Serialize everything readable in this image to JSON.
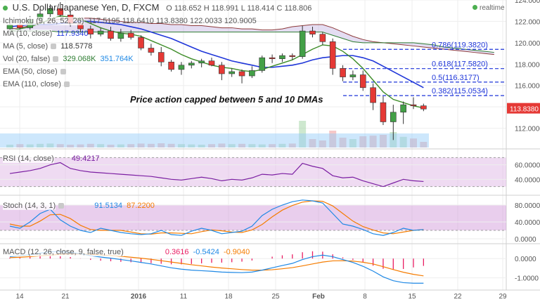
{
  "header": {
    "symbol": "U.S. Dollar/Japanese Yen, D, FXCM",
    "ohlc": "O 118.652  H 118.991  L 118.414  C 118.806",
    "realtime": "realtime"
  },
  "annotation": "Price action capped between 5 and 10 DMAs",
  "indicators": {
    "ichimoku": {
      "name": "Ichimoku (9, 26, 52, 26)",
      "values": "117.5195  118.6410  113.8380  122.0033  120.9005"
    },
    "ma10": {
      "name": "MA (10, close)",
      "value": "117.9340"
    },
    "ma5": {
      "name": "MA (5, close)",
      "value": "118.5778"
    },
    "vol": {
      "name": "Vol (20, false)",
      "value": "329.068K",
      "value2": "351.764K"
    },
    "ema50": {
      "name": "EMA (50, close)"
    },
    "ema110": {
      "name": "EMA (110, close)"
    },
    "rsi": {
      "name": "RSI (14, close)",
      "value": "49.4217"
    },
    "stoch": {
      "name": "Stoch (14, 3, 1)",
      "k": "91.5134",
      "d": "87.2200"
    },
    "macd": {
      "name": "MACD (12, 26, close, 9, false, true)",
      "hist": "0.3616",
      "macd": "-0.5424",
      "signal": "-0.9040"
    }
  },
  "colors": {
    "up": "#43a047",
    "down": "#e53935",
    "ma5": "#3d8c27",
    "ma10": "#1f36d9",
    "cloud": "#b39ddb",
    "fib": "#1f36d9",
    "rsi": "#7b1fa2",
    "stoch_k": "#1e88e5",
    "stoch_d": "#f57c00",
    "macd": "#1e88e5",
    "signal": "#f57c00",
    "hist": "#e91e63"
  },
  "chart_data": {
    "type": "candlestick",
    "price_axis": {
      "min": 110.2,
      "max": 124.0,
      "ticks": [
        "124.0000",
        "122.0000",
        "120.0000",
        "118.0000",
        "116.0000",
        "114.0000",
        "112.0000"
      ],
      "last_label": "113.8380"
    },
    "time_labels": [
      "14",
      "21",
      "2016",
      "11",
      "18",
      "25",
      "Feb",
      "8",
      "15",
      "22",
      "29"
    ],
    "candles": [
      {
        "o": 121.3,
        "h": 122.0,
        "l": 120.9,
        "c": 121.7
      },
      {
        "o": 121.7,
        "h": 122.3,
        "l": 121.1,
        "c": 121.4
      },
      {
        "o": 121.4,
        "h": 122.5,
        "l": 121.0,
        "c": 122.2
      },
      {
        "o": 122.2,
        "h": 123.4,
        "l": 121.8,
        "c": 122.7
      },
      {
        "o": 122.7,
        "h": 123.6,
        "l": 122.4,
        "c": 123.2
      },
      {
        "o": 123.2,
        "h": 123.8,
        "l": 122.4,
        "c": 122.6
      },
      {
        "o": 122.6,
        "h": 123.0,
        "l": 121.5,
        "c": 121.8
      },
      {
        "o": 121.8,
        "h": 122.3,
        "l": 121.0,
        "c": 121.3
      },
      {
        "o": 121.3,
        "h": 121.6,
        "l": 120.4,
        "c": 120.8
      },
      {
        "o": 120.8,
        "h": 121.4,
        "l": 120.6,
        "c": 121.1
      },
      {
        "o": 121.1,
        "h": 121.5,
        "l": 120.2,
        "c": 120.4
      },
      {
        "o": 120.4,
        "h": 121.3,
        "l": 120.1,
        "c": 120.9
      },
      {
        "o": 120.9,
        "h": 121.2,
        "l": 120.3,
        "c": 120.5
      },
      {
        "o": 120.5,
        "h": 120.7,
        "l": 119.3,
        "c": 119.5
      },
      {
        "o": 119.5,
        "h": 119.9,
        "l": 118.8,
        "c": 119.1
      },
      {
        "o": 119.1,
        "h": 119.6,
        "l": 117.8,
        "c": 118.2
      },
      {
        "o": 118.2,
        "h": 118.4,
        "l": 117.3,
        "c": 117.5
      },
      {
        "o": 117.5,
        "h": 118.2,
        "l": 117.0,
        "c": 117.9
      },
      {
        "o": 117.9,
        "h": 118.3,
        "l": 117.6,
        "c": 118.1
      },
      {
        "o": 118.1,
        "h": 118.5,
        "l": 117.7,
        "c": 118.3
      },
      {
        "o": 118.3,
        "h": 118.6,
        "l": 117.8,
        "c": 117.9
      },
      {
        "o": 117.9,
        "h": 118.2,
        "l": 116.5,
        "c": 117.1
      },
      {
        "o": 117.1,
        "h": 117.6,
        "l": 116.8,
        "c": 117.3
      },
      {
        "o": 117.3,
        "h": 117.5,
        "l": 116.2,
        "c": 116.9
      },
      {
        "o": 116.9,
        "h": 117.8,
        "l": 116.7,
        "c": 117.4
      },
      {
        "o": 117.4,
        "h": 118.8,
        "l": 117.2,
        "c": 118.6
      },
      {
        "o": 118.6,
        "h": 118.9,
        "l": 118.1,
        "c": 118.5
      },
      {
        "o": 118.5,
        "h": 119.0,
        "l": 118.2,
        "c": 118.8
      },
      {
        "o": 118.8,
        "h": 119.0,
        "l": 118.4,
        "c": 118.7
      },
      {
        "o": 118.7,
        "h": 121.6,
        "l": 118.5,
        "c": 121.1
      },
      {
        "o": 121.1,
        "h": 121.5,
        "l": 120.5,
        "c": 120.8
      },
      {
        "o": 120.8,
        "h": 121.0,
        "l": 119.8,
        "c": 120.1
      },
      {
        "o": 120.1,
        "h": 120.4,
        "l": 117.0,
        "c": 117.6
      },
      {
        "o": 117.6,
        "h": 117.9,
        "l": 116.4,
        "c": 116.8
      },
      {
        "o": 116.8,
        "h": 117.4,
        "l": 116.5,
        "c": 117.0
      },
      {
        "o": 117.0,
        "h": 117.4,
        "l": 115.5,
        "c": 115.8
      },
      {
        "o": 115.8,
        "h": 116.2,
        "l": 113.7,
        "c": 114.4
      },
      {
        "o": 114.4,
        "h": 115.0,
        "l": 112.3,
        "c": 112.6
      },
      {
        "o": 112.6,
        "h": 114.2,
        "l": 110.9,
        "c": 113.5
      },
      {
        "o": 113.5,
        "h": 114.5,
        "l": 112.4,
        "c": 114.2
      },
      {
        "o": 114.2,
        "h": 114.9,
        "l": 113.8,
        "c": 114.1
      },
      {
        "o": 114.1,
        "h": 114.3,
        "l": 113.6,
        "c": 113.8
      }
    ],
    "ma5": [
      121.1,
      121.3,
      121.5,
      121.8,
      122.2,
      122.5,
      122.4,
      122.2,
      121.8,
      121.4,
      121.1,
      120.9,
      120.8,
      120.6,
      120.2,
      119.8,
      119.4,
      118.9,
      118.5,
      118.2,
      117.9,
      117.7,
      117.6,
      117.4,
      117.3,
      117.5,
      117.8,
      118.1,
      118.4,
      118.9,
      119.4,
      119.8,
      119.7,
      119.2,
      118.5,
      117.6,
      116.5,
      115.4,
      114.7,
      114.4,
      114.1,
      113.9
    ],
    "ma10": [
      121.5,
      121.6,
      121.7,
      121.7,
      121.7,
      121.8,
      121.9,
      122.0,
      122.0,
      121.9,
      121.8,
      121.7,
      121.5,
      121.3,
      121.0,
      120.7,
      120.4,
      120.0,
      119.6,
      119.2,
      118.9,
      118.6,
      118.3,
      118.1,
      117.9,
      117.7,
      117.7,
      117.8,
      117.9,
      118.1,
      118.4,
      118.6,
      118.7,
      118.8,
      118.8,
      118.6,
      118.3,
      117.8,
      117.3,
      116.8,
      116.3,
      115.8
    ],
    "cloud_upper": [
      121.3,
      121.4,
      121.6,
      121.9,
      122.1,
      122.2,
      122.3,
      122.3,
      122.3,
      122.2,
      122.1,
      122.0,
      121.9,
      121.9,
      121.8,
      121.8,
      121.7,
      121.7,
      121.6,
      121.6,
      121.5,
      121.4,
      121.4,
      121.3,
      121.3,
      121.2,
      121.2,
      121.3,
      121.5,
      121.6,
      121.7,
      121.7,
      121.4,
      121.0,
      120.6,
      120.3,
      120.1,
      120.0,
      119.9,
      119.8,
      119.7,
      119.6,
      119.5,
      119.4,
      119.3,
      119.2,
      119.1,
      119.0,
      118.9
    ],
    "cloud_lower": [
      121.0,
      121.1,
      121.1,
      121.1,
      121.1,
      121.0,
      121.0,
      121.0,
      121.0,
      121.0,
      121.0,
      121.0,
      121.0,
      121.0,
      121.0,
      121.0,
      121.0,
      121.0,
      121.0,
      121.0,
      121.0,
      121.0,
      121.0,
      121.0,
      121.0,
      121.0,
      121.0,
      121.0,
      121.0,
      121.0,
      121.0,
      121.0,
      120.7,
      120.4,
      120.1,
      120.0,
      120.0,
      120.0,
      120.0,
      120.0,
      120.0,
      119.9,
      119.8,
      119.6,
      119.5,
      119.4,
      119.3,
      119.2,
      119.1
    ],
    "volume": [
      0.1,
      0.12,
      0.11,
      0.13,
      0.14,
      0.12,
      0.1,
      0.11,
      0.13,
      0.12,
      0.1,
      0.11,
      0.12,
      0.14,
      0.13,
      0.15,
      0.13,
      0.12,
      0.11,
      0.1,
      0.12,
      0.14,
      0.12,
      0.13,
      0.12,
      0.11,
      0.12,
      0.13,
      0.14,
      0.95,
      0.3,
      0.25,
      0.6,
      0.35,
      0.3,
      0.4,
      0.42,
      0.45,
      0.55,
      0.38,
      0.32,
      0.2
    ],
    "fib_levels": [
      {
        "label": "0.786(119.3820)",
        "value": 119.382
      },
      {
        "label": "0.618(117.5820)",
        "value": 117.582
      },
      {
        "label": "0.5(116.3177)",
        "value": 116.3177
      },
      {
        "label": "0.382(115.0534)",
        "value": 115.0534
      }
    ],
    "rsi": {
      "axis": [
        "60.0000",
        "40.0000"
      ],
      "min": 20,
      "max": 80,
      "bands": [
        70,
        30
      ],
      "values": [
        48,
        50,
        52,
        55,
        60,
        63,
        55,
        52,
        50,
        49,
        48,
        47,
        46,
        45,
        44,
        42,
        40,
        39,
        41,
        43,
        41,
        38,
        40,
        39,
        42,
        47,
        46,
        48,
        47,
        62,
        58,
        55,
        45,
        42,
        43,
        38,
        34,
        30,
        35,
        40,
        38,
        37
      ]
    },
    "stoch": {
      "axis": [
        "80.0000",
        "40.0000",
        "0.0000"
      ],
      "min": -10,
      "max": 100,
      "bands": [
        80,
        20
      ],
      "k": [
        30,
        25,
        40,
        60,
        70,
        45,
        30,
        20,
        15,
        25,
        20,
        15,
        12,
        10,
        12,
        20,
        10,
        8,
        18,
        25,
        20,
        12,
        15,
        18,
        30,
        55,
        70,
        80,
        88,
        92,
        90,
        85,
        60,
        35,
        30,
        22,
        12,
        8,
        15,
        25,
        20,
        22
      ],
      "d": [
        35,
        30,
        30,
        42,
        57,
        58,
        48,
        32,
        22,
        20,
        20,
        20,
        16,
        12,
        11,
        14,
        14,
        13,
        12,
        17,
        21,
        19,
        16,
        15,
        21,
        34,
        52,
        68,
        79,
        87,
        90,
        89,
        78,
        60,
        42,
        29,
        21,
        14,
        12,
        16,
        20,
        22
      ]
    },
    "macd": {
      "axis": [
        "0.0000",
        "-1.0000"
      ],
      "min": -1.6,
      "max": 0.7,
      "macd": [
        0.1,
        0.15,
        0.2,
        0.28,
        0.35,
        0.36,
        0.32,
        0.25,
        0.15,
        0.08,
        0.02,
        -0.05,
        -0.12,
        -0.2,
        -0.28,
        -0.38,
        -0.48,
        -0.55,
        -0.6,
        -0.63,
        -0.66,
        -0.7,
        -0.72,
        -0.73,
        -0.7,
        -0.6,
        -0.48,
        -0.36,
        -0.25,
        -0.05,
        0.1,
        0.18,
        0.1,
        -0.05,
        -0.2,
        -0.4,
        -0.65,
        -0.95,
        -1.15,
        -1.25,
        -1.28,
        -1.28
      ],
      "signal": [
        0.05,
        0.07,
        0.1,
        0.14,
        0.18,
        0.22,
        0.24,
        0.24,
        0.22,
        0.19,
        0.16,
        0.12,
        0.07,
        0.02,
        -0.04,
        -0.11,
        -0.18,
        -0.25,
        -0.32,
        -0.38,
        -0.44,
        -0.49,
        -0.53,
        -0.57,
        -0.6,
        -0.6,
        -0.58,
        -0.53,
        -0.47,
        -0.38,
        -0.28,
        -0.18,
        -0.12,
        -0.11,
        -0.13,
        -0.19,
        -0.28,
        -0.42,
        -0.57,
        -0.71,
        -0.82,
        -0.9
      ],
      "hist": [
        0.05,
        0.08,
        0.1,
        0.14,
        0.17,
        0.14,
        0.08,
        0.01,
        -0.07,
        -0.11,
        -0.14,
        -0.17,
        -0.19,
        -0.22,
        -0.24,
        -0.27,
        -0.3,
        -0.3,
        -0.28,
        -0.25,
        -0.22,
        -0.21,
        -0.19,
        -0.16,
        -0.1,
        0.0,
        0.1,
        0.17,
        0.22,
        0.33,
        0.38,
        0.36,
        0.22,
        0.06,
        -0.07,
        -0.21,
        -0.37,
        -0.53,
        -0.58,
        -0.54,
        -0.46,
        -0.38
      ]
    }
  }
}
